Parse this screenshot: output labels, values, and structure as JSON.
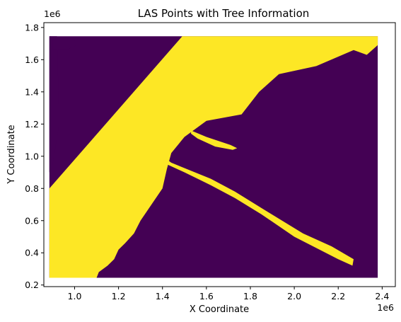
{
  "chart_data": {
    "type": "scatter",
    "title": "LAS Points with Tree Information",
    "xlabel": "X Coordinate",
    "ylabel": "Y Coordinate",
    "x_offset_label": "1e6",
    "y_offset_label": "1e6",
    "xlim": [
      0.86,
      2.46
    ],
    "ylim": [
      0.19,
      1.83
    ],
    "x_ticks": [
      1.0,
      1.2,
      1.4,
      1.6,
      1.8,
      2.0,
      2.2,
      2.4
    ],
    "x_tick_labels": [
      "1.0",
      "1.2",
      "1.4",
      "1.6",
      "1.8",
      "2.0",
      "2.2",
      "2.4"
    ],
    "y_ticks": [
      0.2,
      0.4,
      0.6,
      0.8,
      1.0,
      1.2,
      1.4,
      1.6,
      1.8
    ],
    "y_tick_labels": [
      "0.2",
      "0.4",
      "0.6",
      "0.8",
      "1.0",
      "1.2",
      "1.4",
      "1.6",
      "1.8"
    ],
    "grid": false,
    "legend": "none",
    "colors": {
      "non_tree": "#440154",
      "tree": "#fde725"
    },
    "series": [
      {
        "class": 0,
        "color": "#440154",
        "regions": [
          {
            "x": [
              0.885,
              2.38,
              2.38,
              0.885
            ],
            "y": [
              0.245,
              0.245,
              1.745,
              1.745
            ]
          },
          {
            "x": [
              0.885,
              0.92,
              0.93,
              0.9,
              0.885
            ],
            "y": [
              1.745,
              1.745,
              1.2,
              0.95,
              0.9
            ]
          },
          {
            "x": [
              0.9,
              1.0,
              1.01,
              0.96,
              0.9
            ],
            "y": [
              1.72,
              1.72,
              1.69,
              1.66,
              1.66
            ]
          }
        ]
      },
      {
        "class": 1,
        "color": "#fde725",
        "regions": [
          {
            "x": [
              0.885,
              1.49,
              2.38,
              2.38,
              2.33,
              2.27,
              2.1,
              1.93,
              1.84,
              1.76,
              1.6,
              1.5,
              1.44,
              1.42,
              1.4,
              1.33,
              1.3,
              1.27,
              1.23,
              1.2,
              1.18,
              1.15,
              1.11,
              1.1,
              0.885
            ],
            "y": [
              0.8,
              1.745,
              1.745,
              1.69,
              1.63,
              1.66,
              1.56,
              1.51,
              1.4,
              1.26,
              1.22,
              1.12,
              1.02,
              0.92,
              0.8,
              0.66,
              0.6,
              0.52,
              0.46,
              0.42,
              0.36,
              0.32,
              0.28,
              0.245,
              0.245
            ]
          },
          {
            "x": [
              1.42,
              1.44,
              1.62,
              1.73,
              1.86,
              2.04,
              2.17,
              2.27,
              2.265,
              2.2,
              2.0,
              1.85,
              1.73,
              1.62,
              1.5,
              1.42
            ],
            "y": [
              0.98,
              0.96,
              0.86,
              0.78,
              0.67,
              0.52,
              0.44,
              0.36,
              0.32,
              0.36,
              0.5,
              0.64,
              0.74,
              0.82,
              0.9,
              0.95
            ]
          },
          {
            "x": [
              1.53,
              1.6,
              1.71,
              1.74,
              1.72,
              1.64,
              1.56,
              1.53
            ],
            "y": [
              1.16,
              1.12,
              1.07,
              1.05,
              1.04,
              1.06,
              1.11,
              1.14
            ]
          }
        ]
      }
    ]
  }
}
